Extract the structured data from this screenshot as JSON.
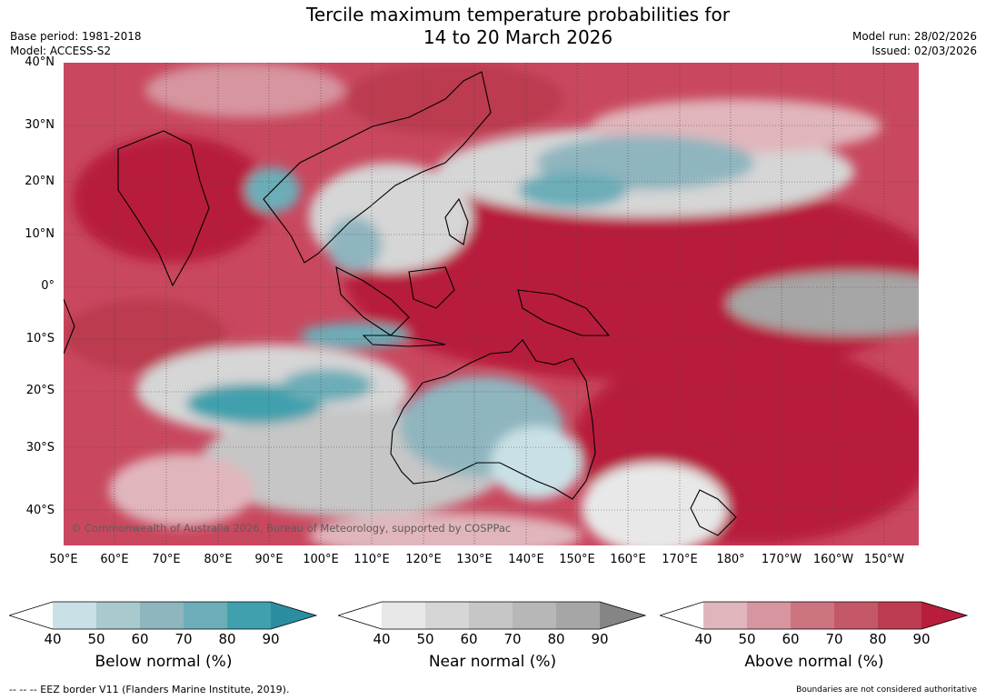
{
  "title_line1": "Tercile maximum temperature probabilities for",
  "title_line2": "14 to 20 March 2026",
  "meta_left": {
    "base_period": "Base period: 1981-2018",
    "model": "Model: ACCESS-S2"
  },
  "meta_right": {
    "model_run": "Model run: 28/02/2026",
    "issued": "Issued: 02/03/2026"
  },
  "map": {
    "lat_labels": [
      "40°N",
      "30°N",
      "20°N",
      "10°N",
      "0°",
      "10°S",
      "20°S",
      "30°S",
      "40°S"
    ],
    "lon_labels": [
      "50°E",
      "60°E",
      "70°E",
      "80°E",
      "90°E",
      "100°E",
      "110°E",
      "120°E",
      "130°E",
      "140°E",
      "150°E",
      "160°E",
      "170°E",
      "180°",
      "170°W",
      "160°W",
      "150°W"
    ],
    "copyright": "© Commonwealth of Australia 2026, Bureau of Meteorology, supported by COSPPac"
  },
  "colorbars": [
    {
      "title": "Below normal (%)",
      "ticks": [
        "40",
        "50",
        "60",
        "70",
        "80",
        "90"
      ],
      "colors": [
        "#ffffff",
        "#c9e1e6",
        "#a8c9cd",
        "#8fb5bf",
        "#6cadb8",
        "#41a0ad",
        "#2b8ea0"
      ]
    },
    {
      "title": "Near normal (%)",
      "ticks": [
        "40",
        "50",
        "60",
        "70",
        "80",
        "90"
      ],
      "colors": [
        "#ffffff",
        "#e8e8e8",
        "#d6d6d6",
        "#c6c6c6",
        "#b7b7b7",
        "#a6a6a6",
        "#858585"
      ]
    },
    {
      "title": "Above normal (%)",
      "ticks": [
        "40",
        "50",
        "60",
        "70",
        "80",
        "90"
      ],
      "colors": [
        "#ffffff",
        "#e0b6bc",
        "#d6959f",
        "#cc7480",
        "#c45868",
        "#bc3b50",
        "#b81d3c"
      ]
    }
  ],
  "footer_left": "--  --  -- EEZ border V11 (Flanders Marine Institute, 2019).",
  "footer_right": "Boundaries are not considered authoritative"
}
